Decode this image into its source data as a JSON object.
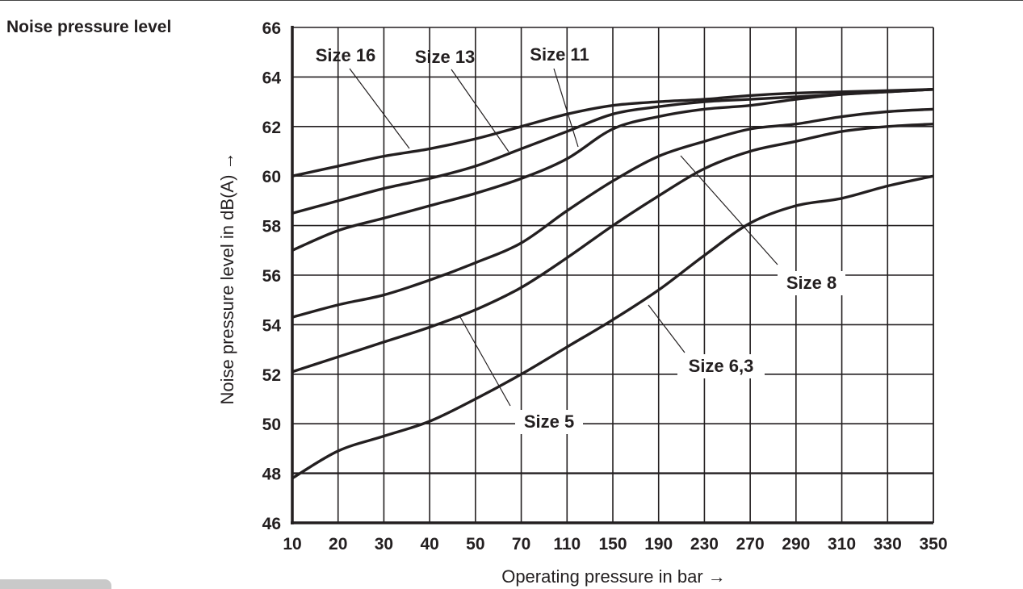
{
  "page_title": "Noise pressure level",
  "chart_data": {
    "type": "line",
    "title": "Noise pressure level",
    "xlabel": "Operating pressure in bar →",
    "ylabel": "Noise pressure level in dB(A) →",
    "x": [
      10,
      20,
      30,
      40,
      50,
      70,
      110,
      150,
      190,
      230,
      270,
      290,
      310,
      330,
      350
    ],
    "x_scale": "categorical",
    "ylim": [
      46,
      66
    ],
    "yticks": [
      46,
      48,
      50,
      52,
      54,
      56,
      58,
      60,
      62,
      64,
      66
    ],
    "grid": true,
    "legend": "inline labels with leader lines",
    "series": [
      {
        "name": "Size 16",
        "values": [
          60.0,
          60.4,
          60.8,
          61.1,
          61.5,
          62.0,
          62.5,
          62.85,
          63.0,
          63.1,
          63.25,
          63.35,
          63.4,
          63.45,
          63.5
        ]
      },
      {
        "name": "Size 13",
        "values": [
          58.5,
          59.0,
          59.5,
          59.9,
          60.4,
          61.1,
          61.8,
          62.5,
          62.8,
          63.0,
          63.1,
          63.2,
          63.3,
          63.4,
          63.5
        ]
      },
      {
        "name": "Size 11",
        "values": [
          57.0,
          57.8,
          58.3,
          58.8,
          59.3,
          59.9,
          60.7,
          61.9,
          62.4,
          62.7,
          62.85,
          63.1,
          63.3,
          63.4,
          63.5
        ]
      },
      {
        "name": "Size 8",
        "values": [
          54.3,
          54.8,
          55.2,
          55.8,
          56.5,
          57.3,
          58.6,
          59.8,
          60.8,
          61.4,
          61.9,
          62.1,
          62.4,
          62.6,
          62.7
        ]
      },
      {
        "name": "Size 6,3",
        "values": [
          52.1,
          52.7,
          53.3,
          53.9,
          54.6,
          55.5,
          56.7,
          58.0,
          59.2,
          60.3,
          61.0,
          61.4,
          61.8,
          62.0,
          62.1
        ]
      },
      {
        "name": "Size 5",
        "values": [
          47.8,
          48.9,
          49.5,
          50.1,
          51.0,
          52.0,
          53.1,
          54.2,
          55.4,
          56.8,
          58.1,
          58.8,
          59.1,
          59.6,
          60.0
        ]
      }
    ]
  }
}
